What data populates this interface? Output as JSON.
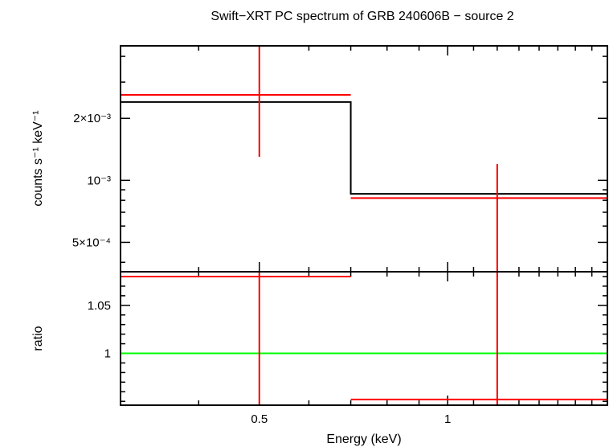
{
  "colors": {
    "background": "#ffffff",
    "frame": "#000000",
    "data": "#ff0000",
    "model": "#000000",
    "ratio_unity": "#00ff00"
  },
  "chart_data": [
    {
      "type": "scatter",
      "panel": "spectrum",
      "title": "Swift−XRT PC spectrum of GRB 240606B − source 2",
      "ylabel": "counts s⁻¹ keV⁻¹",
      "xlabel": "",
      "xscale": "log",
      "yscale": "log",
      "xlim": [
        0.3,
        1.8
      ],
      "ylim": [
        0.00036,
        0.0045
      ],
      "grid": false,
      "y_ticks": [
        {
          "value": 0.0005,
          "label": "5×10⁻⁴"
        },
        {
          "value": 0.001,
          "label": "10⁻³"
        },
        {
          "value": 0.002,
          "label": "2×10⁻³"
        }
      ],
      "series": [
        {
          "kind": "data",
          "points": [
            {
              "x": 0.5,
              "xlo": 0.3,
              "xhi": 0.7,
              "y": 0.0026,
              "ylo": 0.0013,
              "yhi": 0.0045
            },
            {
              "x": 1.2,
              "xlo": 0.7,
              "xhi": 1.8,
              "y": 0.00082,
              "ylo": 0.00036,
              "yhi": 0.0012
            }
          ]
        },
        {
          "kind": "model",
          "steps": [
            {
              "xlo": 0.3,
              "xhi": 0.7,
              "y": 0.0024
            },
            {
              "xlo": 0.7,
              "xhi": 1.8,
              "y": 0.00086
            }
          ]
        }
      ]
    },
    {
      "type": "scatter",
      "panel": "ratio",
      "title": "",
      "ylabel": "ratio",
      "xlabel": "Energy (keV)",
      "xscale": "log",
      "yscale": "linear",
      "xlim": [
        0.3,
        1.8
      ],
      "ylim": [
        0.946,
        1.085
      ],
      "grid": false,
      "x_ticks": [
        {
          "value": 0.5,
          "label": "0.5"
        },
        {
          "value": 1,
          "label": "1"
        }
      ],
      "y_ticks": [
        {
          "value": 1,
          "label": "1"
        },
        {
          "value": 1.05,
          "label": "1.05"
        }
      ],
      "reference_line": 1,
      "series": [
        {
          "kind": "data",
          "points": [
            {
              "x": 0.5,
              "xlo": 0.3,
              "xhi": 0.7,
              "y": 1.08,
              "ylo": 0.946,
              "yhi": 1.085
            },
            {
              "x": 1.2,
              "xlo": 0.7,
              "xhi": 1.8,
              "y": 0.952,
              "ylo": 0.946,
              "yhi": 1.085
            }
          ]
        }
      ]
    }
  ]
}
